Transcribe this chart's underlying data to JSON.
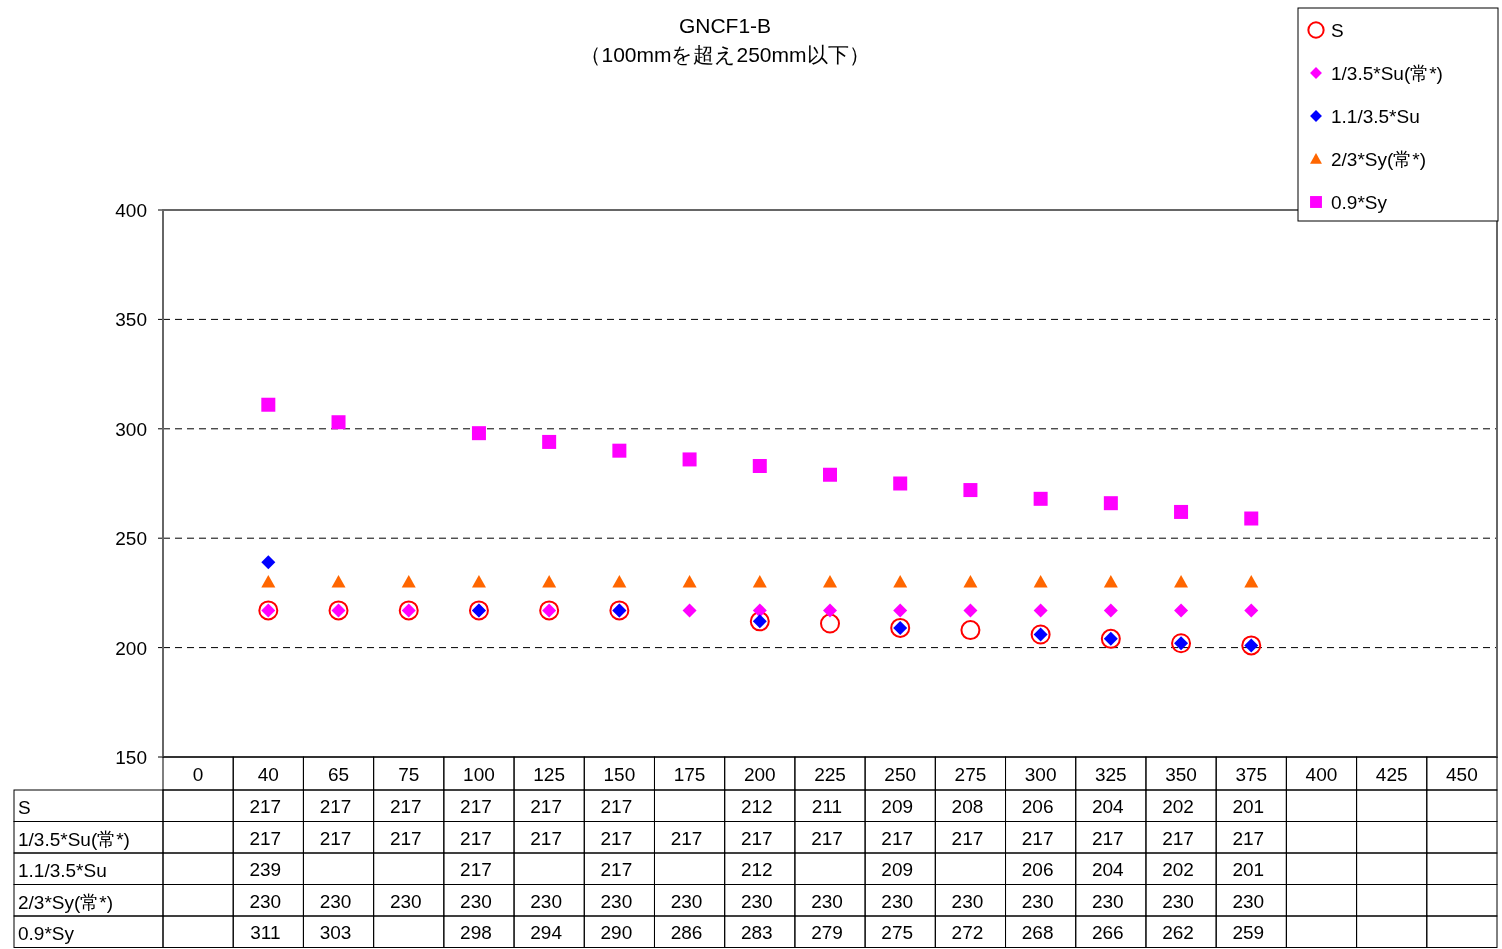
{
  "chart_data": {
    "type": "scatter",
    "title": "GNCF1-B",
    "subtitle": "（100mmを超え250mm以下）",
    "categories": [
      "0",
      "40",
      "65",
      "75",
      "100",
      "125",
      "150",
      "175",
      "200",
      "225",
      "250",
      "275",
      "300",
      "325",
      "350",
      "375",
      "400",
      "425",
      "450"
    ],
    "ylim": [
      150,
      400
    ],
    "yticks": [
      150,
      200,
      250,
      300,
      350,
      400
    ],
    "grid": "y",
    "line_style": "dashed",
    "legend": "top right",
    "data_labels": true,
    "series": [
      {
        "name": "S",
        "color": "#ff0000",
        "marker": "circle",
        "values": [
          null,
          217,
          217,
          217,
          217,
          217,
          217,
          null,
          212,
          211,
          209,
          208,
          206,
          204,
          202,
          201,
          null,
          null,
          null
        ]
      },
      {
        "name": "1/3.5*Su(常*)",
        "color": "#ff00ff",
        "marker": "diamond",
        "values": [
          null,
          217,
          217,
          217,
          217,
          217,
          217,
          217,
          217,
          217,
          217,
          217,
          217,
          217,
          217,
          217,
          null,
          null,
          null
        ]
      },
      {
        "name": "1.1/3.5*Su",
        "color": "#0000ff",
        "marker": "diamond",
        "values": [
          null,
          239,
          null,
          null,
          217,
          null,
          217,
          null,
          212,
          null,
          209,
          null,
          206,
          204,
          202,
          201,
          null,
          null,
          null
        ]
      },
      {
        "name": "2/3*Sy(常*)",
        "color": "#ff6600",
        "marker": "triangle",
        "values": [
          null,
          230,
          230,
          230,
          230,
          230,
          230,
          230,
          230,
          230,
          230,
          230,
          230,
          230,
          230,
          230,
          null,
          null,
          null
        ]
      },
      {
        "name": "0.9*Sy",
        "color": "#ff00ff",
        "marker": "square",
        "values": [
          null,
          311,
          303,
          null,
          298,
          294,
          290,
          286,
          283,
          279,
          275,
          272,
          268,
          266,
          262,
          259,
          null,
          null,
          null
        ]
      }
    ]
  }
}
